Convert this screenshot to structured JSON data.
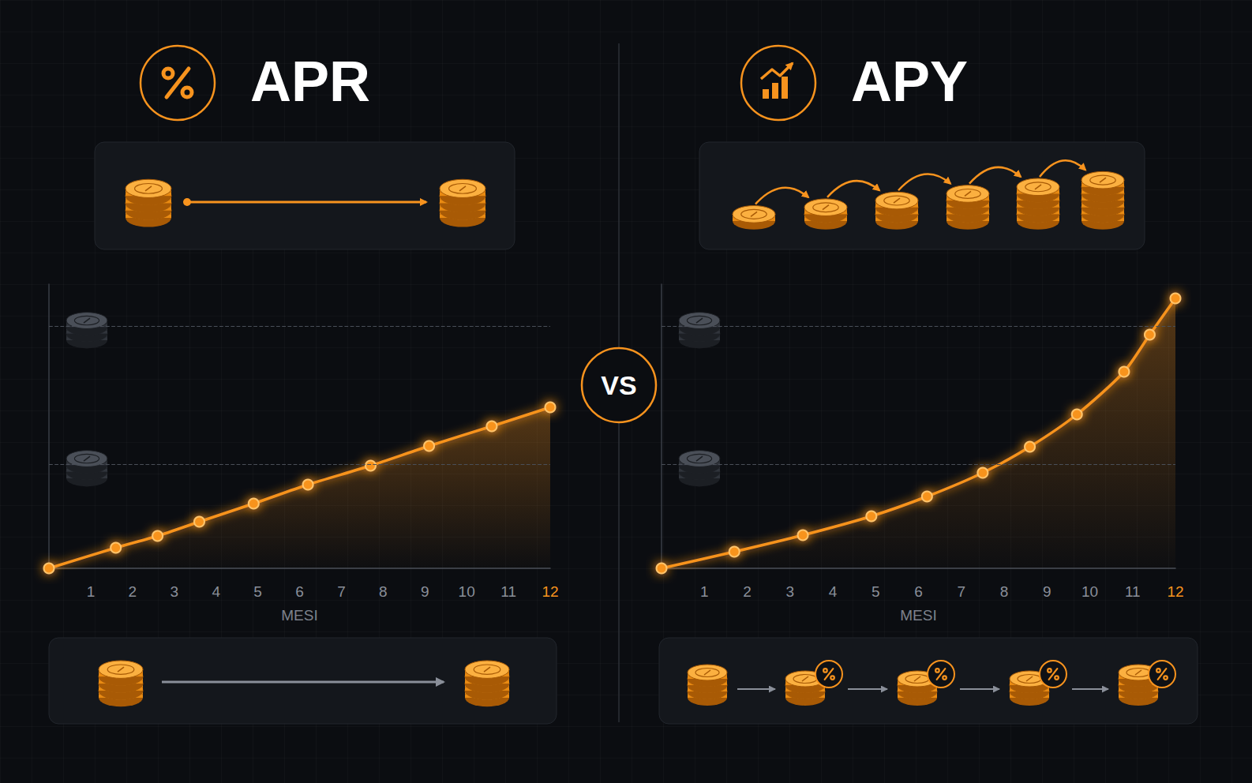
{
  "chart_data": [
    {
      "type": "area",
      "title": "APR",
      "xlabel": "MESI",
      "x": [
        0,
        1.6,
        2.6,
        3.6,
        4.9,
        6.2,
        7.7,
        9.1,
        10.6,
        12
      ],
      "values": [
        0,
        26,
        41,
        59,
        82,
        106,
        130,
        155,
        180,
        204
      ],
      "xlim": [
        0,
        12
      ],
      "xticks": [
        1,
        2,
        3,
        4,
        5,
        6,
        7,
        8,
        9,
        10,
        11,
        12
      ],
      "ylim": [
        0,
        360
      ],
      "reference_lines": [
        132,
        307
      ],
      "color": "#f7931e",
      "marker": "circle",
      "grid": false,
      "tick_labels": "x"
    },
    {
      "type": "area",
      "title": "APY",
      "xlabel": "MESI",
      "x": [
        0,
        1.7,
        3.3,
        4.9,
        6.2,
        7.5,
        8.6,
        9.7,
        10.8,
        11.4,
        12
      ],
      "values": [
        0,
        21,
        42,
        66,
        91,
        121,
        154,
        195,
        249,
        296,
        342
      ],
      "xlim": [
        0,
        12
      ],
      "xticks": [
        1,
        2,
        3,
        4,
        5,
        6,
        7,
        8,
        9,
        10,
        11,
        12
      ],
      "ylim": [
        0,
        360
      ],
      "reference_lines": [
        132,
        307
      ],
      "color": "#f7931e",
      "marker": "circle",
      "grid": false,
      "tick_labels": "x"
    }
  ],
  "divider_label": "VS"
}
